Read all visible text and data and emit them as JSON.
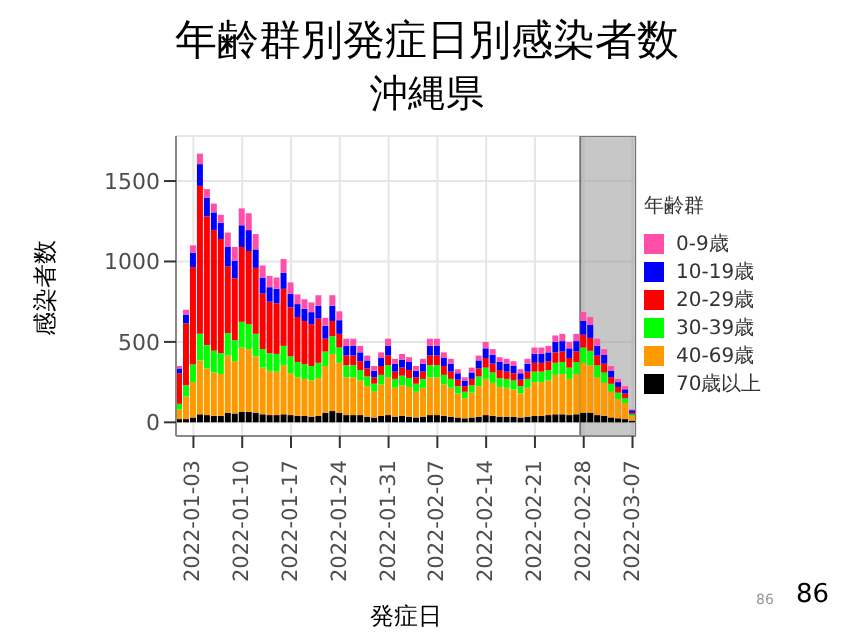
{
  "chart_data": {
    "type": "bar",
    "title": "年齢群別発症日別感染者数",
    "subtitle": "沖縄県",
    "xlabel": "発症日",
    "ylabel": "感染者数",
    "legend_title": "年齢群",
    "stacked": true,
    "grid": true,
    "legend": "right",
    "x": [
      "2022-01-01",
      "2022-01-02",
      "2022-01-03",
      "2022-01-04",
      "2022-01-05",
      "2022-01-06",
      "2022-01-07",
      "2022-01-08",
      "2022-01-09",
      "2022-01-10",
      "2022-01-11",
      "2022-01-12",
      "2022-01-13",
      "2022-01-14",
      "2022-01-15",
      "2022-01-16",
      "2022-01-17",
      "2022-01-18",
      "2022-01-19",
      "2022-01-20",
      "2022-01-21",
      "2022-01-22",
      "2022-01-23",
      "2022-01-24",
      "2022-01-25",
      "2022-01-26",
      "2022-01-27",
      "2022-01-28",
      "2022-01-29",
      "2022-01-30",
      "2022-01-31",
      "2022-02-01",
      "2022-02-02",
      "2022-02-03",
      "2022-02-04",
      "2022-02-05",
      "2022-02-06",
      "2022-02-07",
      "2022-02-08",
      "2022-02-09",
      "2022-02-10",
      "2022-02-11",
      "2022-02-12",
      "2022-02-13",
      "2022-02-14",
      "2022-02-15",
      "2022-02-16",
      "2022-02-17",
      "2022-02-18",
      "2022-02-19",
      "2022-02-20",
      "2022-02-21",
      "2022-02-22",
      "2022-02-23",
      "2022-02-24",
      "2022-02-25",
      "2022-02-26",
      "2022-02-27",
      "2022-02-28",
      "2022-03-01",
      "2022-03-02",
      "2022-03-03",
      "2022-03-04",
      "2022-03-05",
      "2022-03-06",
      "2022-03-07"
    ],
    "xlim": [
      "2021-12-31T12:00",
      "2022-03-07T12:00"
    ],
    "xticks": [
      "2022-01-03",
      "2022-01-10",
      "2022-01-17",
      "2022-01-24",
      "2022-01-31",
      "2022-02-07",
      "2022-02-14",
      "2022-02-21",
      "2022-02-28",
      "2022-03-07"
    ],
    "ylim": [
      -85,
      1780
    ],
    "yticks": [
      0,
      500,
      1000,
      1500
    ],
    "bands": [
      {
        "axis": "x",
        "from": "2022-02-27T12:00",
        "to": "2022-03-07T12:00",
        "color": "#999999"
      }
    ],
    "series": [
      {
        "name": "70歳以上",
        "color": "#000000",
        "values": [
          20,
          20,
          30,
          50,
          45,
          40,
          40,
          60,
          55,
          65,
          65,
          60,
          50,
          45,
          45,
          50,
          45,
          40,
          40,
          35,
          40,
          60,
          70,
          60,
          45,
          45,
          45,
          35,
          30,
          40,
          45,
          35,
          40,
          35,
          30,
          35,
          45,
          45,
          40,
          35,
          30,
          25,
          30,
          35,
          45,
          40,
          35,
          35,
          35,
          30,
          35,
          40,
          40,
          45,
          50,
          50,
          45,
          50,
          60,
          60,
          45,
          40,
          30,
          25,
          20,
          10
        ]
      },
      {
        "name": "40-69歳",
        "color": "#ff9900",
        "values": [
          60,
          140,
          220,
          335,
          290,
          270,
          260,
          355,
          325,
          400,
          390,
          350,
          290,
          275,
          270,
          305,
          260,
          240,
          230,
          225,
          235,
          290,
          355,
          310,
          235,
          235,
          215,
          190,
          160,
          195,
          235,
          180,
          190,
          185,
          160,
          180,
          235,
          235,
          195,
          180,
          150,
          125,
          155,
          190,
          225,
          205,
          185,
          180,
          170,
          150,
          180,
          210,
          210,
          215,
          245,
          250,
          225,
          250,
          310,
          295,
          235,
          205,
          160,
          120,
          100,
          30
        ]
      },
      {
        "name": "30-39歳",
        "color": "#00ff00",
        "values": [
          35,
          70,
          110,
          165,
          145,
          135,
          130,
          140,
          130,
          160,
          155,
          140,
          115,
          110,
          110,
          120,
          105,
          95,
          90,
          90,
          95,
          90,
          110,
          95,
          75,
          75,
          65,
          60,
          50,
          60,
          75,
          55,
          60,
          55,
          50,
          55,
          75,
          75,
          60,
          55,
          45,
          40,
          45,
          60,
          70,
          65,
          55,
          55,
          55,
          45,
          55,
          65,
          65,
          65,
          75,
          75,
          70,
          75,
          95,
          90,
          75,
          65,
          50,
          40,
          30,
          10
        ]
      },
      {
        "name": "20-29歳",
        "color": "#ff0000",
        "values": [
          190,
          385,
          605,
          920,
          800,
          750,
          710,
          415,
          385,
          465,
          455,
          410,
          345,
          320,
          315,
          355,
          305,
          280,
          270,
          260,
          275,
          80,
          95,
          85,
          60,
          60,
          55,
          50,
          40,
          55,
          60,
          45,
          50,
          50,
          40,
          45,
          60,
          60,
          55,
          45,
          40,
          35,
          40,
          50,
          60,
          55,
          50,
          45,
          45,
          40,
          45,
          55,
          55,
          55,
          65,
          65,
          60,
          65,
          80,
          80,
          60,
          55,
          40,
          35,
          30,
          10
        ]
      },
      {
        "name": "10-19歳",
        "color": "#0000ff",
        "values": [
          30,
          55,
          90,
          135,
          115,
          110,
          100,
          120,
          110,
          135,
          130,
          115,
          100,
          90,
          90,
          100,
          85,
          80,
          75,
          75,
          80,
          80,
          95,
          85,
          60,
          60,
          55,
          50,
          40,
          50,
          60,
          50,
          50,
          50,
          40,
          50,
          60,
          60,
          50,
          50,
          40,
          35,
          40,
          50,
          60,
          55,
          50,
          50,
          45,
          40,
          50,
          55,
          55,
          55,
          65,
          65,
          60,
          65,
          85,
          80,
          60,
          55,
          40,
          30,
          25,
          15
        ]
      },
      {
        "name": "0-9歳",
        "color": "#ff4fa8",
        "values": [
          15,
          30,
          45,
          65,
          55,
          55,
          50,
          90,
          85,
          105,
          105,
          95,
          75,
          70,
          70,
          85,
          70,
          60,
          60,
          60,
          65,
          50,
          65,
          55,
          45,
          45,
          40,
          30,
          30,
          35,
          45,
          30,
          35,
          30,
          30,
          30,
          45,
          45,
          35,
          30,
          25,
          20,
          30,
          30,
          40,
          35,
          30,
          30,
          30,
          25,
          30,
          40,
          40,
          40,
          40,
          45,
          40,
          45,
          55,
          50,
          45,
          35,
          30,
          20,
          20,
          5
        ]
      }
    ],
    "annotations": [
      "86",
      "86"
    ]
  }
}
